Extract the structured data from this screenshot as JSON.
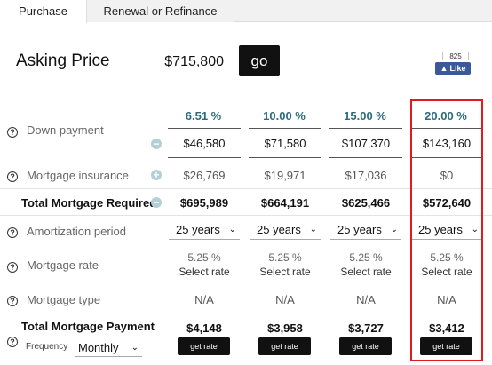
{
  "tabs": [
    {
      "label": "Purchase",
      "active": true
    },
    {
      "label": "Renewal or Refinance",
      "active": false
    }
  ],
  "asking_price": {
    "label": "Asking Price",
    "value": "$715,800",
    "go_label": "go"
  },
  "facebook": {
    "count": "825",
    "like_label": "Like"
  },
  "columns": [
    {
      "percent": "6.51 %",
      "down_payment": "$46,580",
      "mortgage_insurance": "$26,769",
      "total_mortgage": "$695,989",
      "amortization": "25 years",
      "rate": "5.25 %",
      "rate_link": "Select rate",
      "mortgage_type": "N/A",
      "payment": "$4,148",
      "get_rate": "get rate"
    },
    {
      "percent": "10.00 %",
      "down_payment": "$71,580",
      "mortgage_insurance": "$19,971",
      "total_mortgage": "$664,191",
      "amortization": "25 years",
      "rate": "5.25 %",
      "rate_link": "Select rate",
      "mortgage_type": "N/A",
      "payment": "$3,958",
      "get_rate": "get rate"
    },
    {
      "percent": "15.00 %",
      "down_payment": "$107,370",
      "mortgage_insurance": "$17,036",
      "total_mortgage": "$625,466",
      "amortization": "25 years",
      "rate": "5.25 %",
      "rate_link": "Select rate",
      "mortgage_type": "N/A",
      "payment": "$3,727",
      "get_rate": "get rate"
    },
    {
      "percent": "20.00 %",
      "down_payment": "$143,160",
      "mortgage_insurance": "$0",
      "total_mortgage": "$572,640",
      "amortization": "25 years",
      "rate": "5.25 %",
      "rate_link": "Select rate",
      "mortgage_type": "N/A",
      "payment": "$3,412",
      "get_rate": "get rate"
    }
  ],
  "labels": {
    "down_payment": "Down payment",
    "mortgage_insurance": "Mortgage insurance",
    "total_mortgage": "Total Mortgage Required",
    "amortization": "Amortization period",
    "mortgage_rate": "Mortgage rate",
    "mortgage_type": "Mortgage type",
    "total_payment": "Total Mortgage Payment",
    "frequency": "Frequency"
  },
  "frequency": {
    "value": "Monthly"
  },
  "icons": {
    "help": "?",
    "minus": "−",
    "plus": "+",
    "chevron": "⌄"
  },
  "colors": {
    "accent_teal": "#2c6b7c",
    "highlight_red": "#e21c1c",
    "button_black": "#111111"
  }
}
